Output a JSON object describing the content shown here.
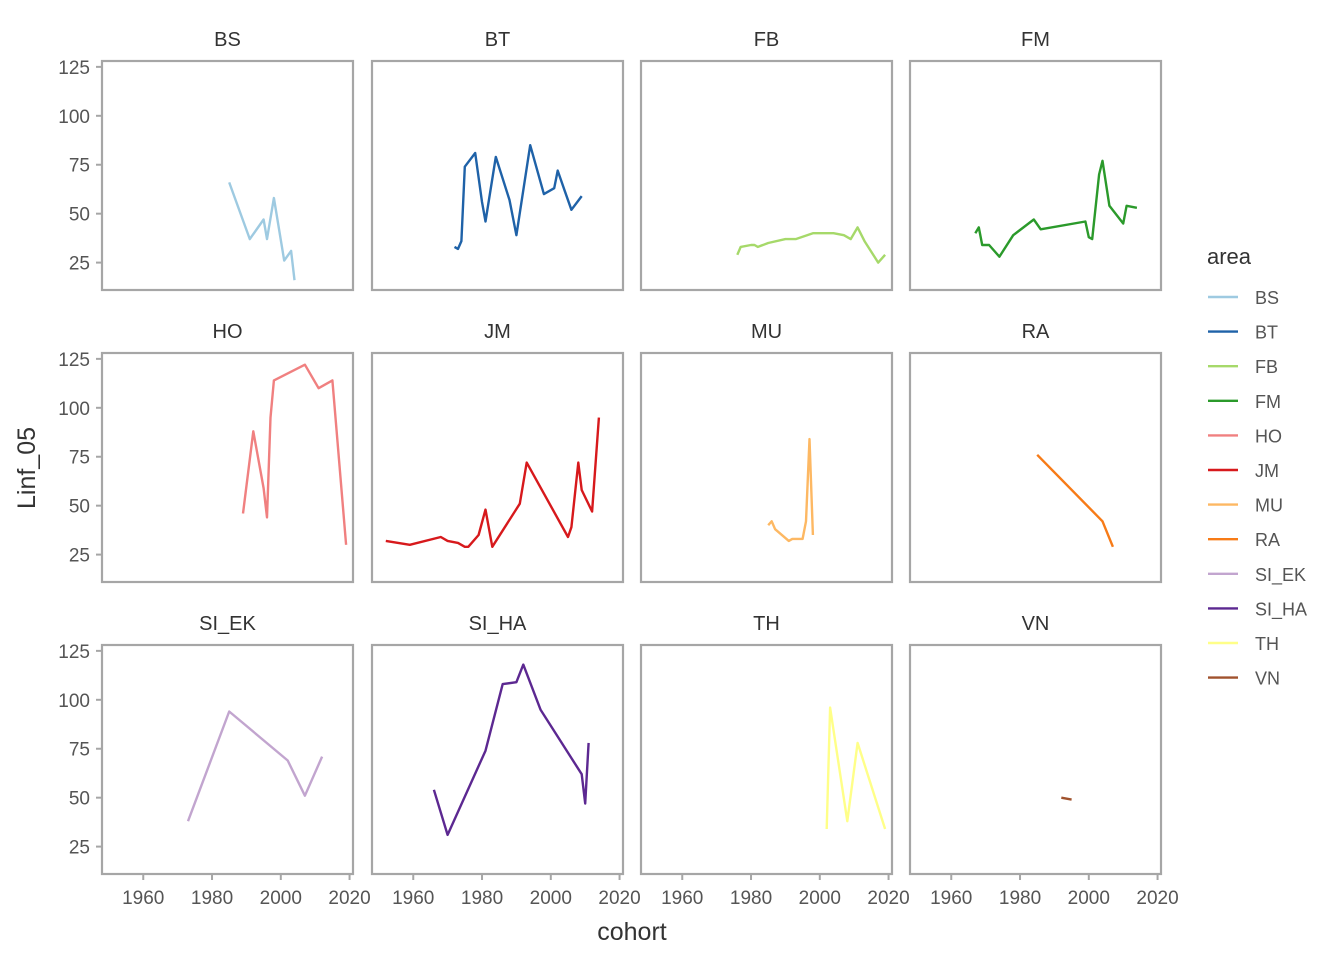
{
  "chart_data": {
    "type": "line",
    "layout": "facet-grid",
    "xlabel": "cohort",
    "ylabel": "Linf_05",
    "xlim": [
      1948,
      2021
    ],
    "ylim": [
      11,
      128
    ],
    "x_ticks": [
      1960,
      1980,
      2000,
      2020
    ],
    "y_ticks": [
      25,
      50,
      75,
      100,
      125
    ],
    "grid": false,
    "legend": {
      "title": "area",
      "placement": "right"
    },
    "panels": [
      {
        "name": "BS",
        "color": "#9ecae1",
        "x": [
          1985,
          1991,
          1995,
          1996,
          1998,
          2001,
          2003,
          2004
        ],
        "y": [
          66,
          37,
          47,
          37,
          58,
          26,
          31,
          16
        ]
      },
      {
        "name": "BT",
        "color": "#1f62a8",
        "x": [
          1972,
          1973,
          1974,
          1975,
          1978,
          1980,
          1981,
          1984,
          1988,
          1990,
          1994,
          1998,
          2001,
          2002,
          2004,
          2006,
          2009
        ],
        "y": [
          33,
          32,
          36,
          74,
          81,
          56,
          46,
          79,
          57,
          39,
          85,
          60,
          63,
          72,
          62,
          52,
          59
        ]
      },
      {
        "name": "FB",
        "color": "#a6d96a",
        "x": [
          1976,
          1977,
          1980,
          1981,
          1982,
          1985,
          1990,
          1991,
          1993,
          1998,
          2004,
          2007,
          2009,
          2011,
          2013,
          2017,
          2019
        ],
        "y": [
          29,
          33,
          34,
          34,
          33,
          35,
          37,
          37,
          37,
          40,
          40,
          39,
          37,
          43,
          36,
          25,
          29
        ]
      },
      {
        "name": "FM",
        "color": "#2b9a2b",
        "x": [
          1967,
          1968,
          1969,
          1971,
          1974,
          1978,
          1984,
          1986,
          1999,
          2000,
          2001,
          2003,
          2004,
          2006,
          2010,
          2011,
          2014
        ],
        "y": [
          40,
          43,
          34,
          34,
          28,
          39,
          47,
          42,
          46,
          38,
          37,
          70,
          77,
          54,
          45,
          54,
          53
        ]
      },
      {
        "name": "HO",
        "color": "#f08080",
        "x": [
          1989,
          1992,
          1995,
          1996,
          1997,
          1998,
          2007,
          2011,
          2015,
          2019
        ],
        "y": [
          46,
          88,
          59,
          44,
          95,
          114,
          122,
          110,
          114,
          30
        ]
      },
      {
        "name": "JM",
        "color": "#d7191c",
        "x": [
          1952,
          1959,
          1968,
          1970,
          1973,
          1975,
          1976,
          1979,
          1981,
          1983,
          1991,
          1993,
          2005,
          2006,
          2008,
          2009,
          2012,
          2014
        ],
        "y": [
          32,
          30,
          34,
          32,
          31,
          29,
          29,
          35,
          48,
          29,
          51,
          72,
          34,
          39,
          72,
          58,
          47,
          95
        ]
      },
      {
        "name": "MU",
        "color": "#fdb863",
        "x": [
          1985,
          1986,
          1987,
          1991,
          1992,
          1994,
          1995,
          1996,
          1997,
          1998
        ],
        "y": [
          40,
          42,
          38,
          32,
          33,
          33,
          33,
          42,
          84,
          35
        ]
      },
      {
        "name": "RA",
        "color": "#f77b17",
        "x": [
          1985,
          2004,
          2007
        ],
        "y": [
          76,
          42,
          29
        ]
      },
      {
        "name": "SI_EK",
        "color": "#c2a5cf",
        "x": [
          1973,
          1985,
          2002,
          2007,
          2012
        ],
        "y": [
          38,
          94,
          69,
          51,
          71
        ]
      },
      {
        "name": "SI_HA",
        "color": "#5c2891",
        "x": [
          1966,
          1970,
          1981,
          1986,
          1990,
          1992,
          1997,
          2009,
          2010,
          2011
        ],
        "y": [
          54,
          31,
          74,
          108,
          109,
          118,
          95,
          62,
          47,
          78
        ]
      },
      {
        "name": "TH",
        "color": "#ffff88",
        "x": [
          2002,
          2003,
          2008,
          2011,
          2019
        ],
        "y": [
          34,
          96,
          38,
          78,
          34
        ]
      },
      {
        "name": "VN",
        "color": "#a0522d",
        "x": [
          1992,
          1995
        ],
        "y": [
          50,
          49
        ]
      }
    ]
  }
}
